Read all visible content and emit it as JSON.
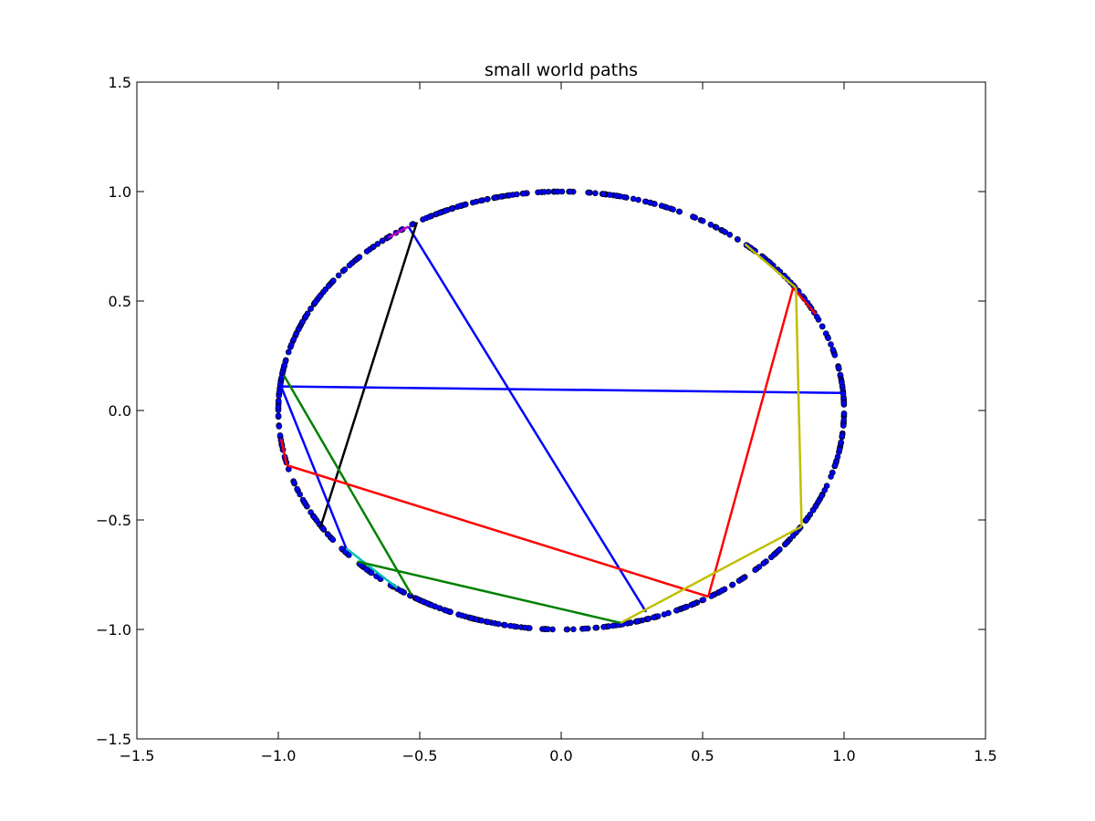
{
  "chart_data": {
    "type": "scatter",
    "title": "small world paths",
    "xlabel": "",
    "ylabel": "",
    "xlim": [
      -1.5,
      1.5
    ],
    "ylim": [
      -1.5,
      1.5
    ],
    "xticks": [
      -1.5,
      -1.0,
      -0.5,
      0.0,
      0.5,
      1.0,
      1.5
    ],
    "yticks": [
      -1.5,
      -1.0,
      -0.5,
      0.0,
      0.5,
      1.0,
      1.5
    ],
    "xtick_labels": [
      "−1.5",
      "−1.0",
      "−0.5",
      "0.0",
      "0.5",
      "1.0",
      "1.5"
    ],
    "ytick_labels": [
      "−1.5",
      "−1.0",
      "−0.5",
      "0.0",
      "0.5",
      "1.0",
      "1.5"
    ],
    "grid": false,
    "legend": "none",
    "points": {
      "description_free": true,
      "shape": "unit circle",
      "radius": 1.0,
      "count": 600,
      "color": "#0000ff",
      "edge_color": "#000000"
    },
    "paths": [
      {
        "color": "#0000ff",
        "x": [
          -0.54,
          0.3
        ],
        "y": [
          0.84,
          -0.92
        ]
      },
      {
        "color": "#000000",
        "x": [
          -0.85,
          -0.51
        ],
        "y": [
          -0.53,
          0.86
        ]
      },
      {
        "color": "#0000ff",
        "x": [
          -0.99,
          0.99
        ],
        "y": [
          0.11,
          0.08
        ]
      },
      {
        "color": "#0000ff",
        "x": [
          -0.99,
          -0.76
        ],
        "y": [
          0.11,
          -0.63
        ]
      },
      {
        "color": "#00bfbf",
        "x": [
          -0.76,
          -0.58
        ],
        "y": [
          -0.63,
          -0.81
        ]
      },
      {
        "color": "#008000",
        "x": [
          -0.98,
          -0.53
        ],
        "y": [
          0.16,
          -0.84
        ]
      },
      {
        "color": "#008000",
        "x": [
          -0.72,
          0.21
        ],
        "y": [
          -0.69,
          -0.97
        ]
      },
      {
        "color": "#ff0000",
        "x": [
          -0.97,
          0.52
        ],
        "y": [
          -0.25,
          -0.85
        ]
      },
      {
        "color": "#ff0000",
        "x": [
          -0.99,
          -0.97
        ],
        "y": [
          -0.13,
          -0.25
        ]
      },
      {
        "color": "#ff0000",
        "x": [
          0.52,
          0.82
        ],
        "y": [
          -0.85,
          0.56
        ]
      },
      {
        "color": "#ff0000",
        "x": [
          0.82,
          0.9
        ],
        "y": [
          0.56,
          0.44
        ]
      },
      {
        "color": "#bfbf00",
        "x": [
          0.21,
          0.85
        ],
        "y": [
          -0.97,
          -0.53
        ]
      },
      {
        "color": "#bfbf00",
        "x": [
          0.85,
          0.83
        ],
        "y": [
          -0.53,
          0.56
        ]
      },
      {
        "color": "#bfbf00",
        "x": [
          0.83,
          0.65
        ],
        "y": [
          0.56,
          0.76
        ]
      },
      {
        "color": "#bf00bf",
        "x": [
          -0.61,
          -0.54
        ],
        "y": [
          0.79,
          0.84
        ]
      }
    ]
  }
}
